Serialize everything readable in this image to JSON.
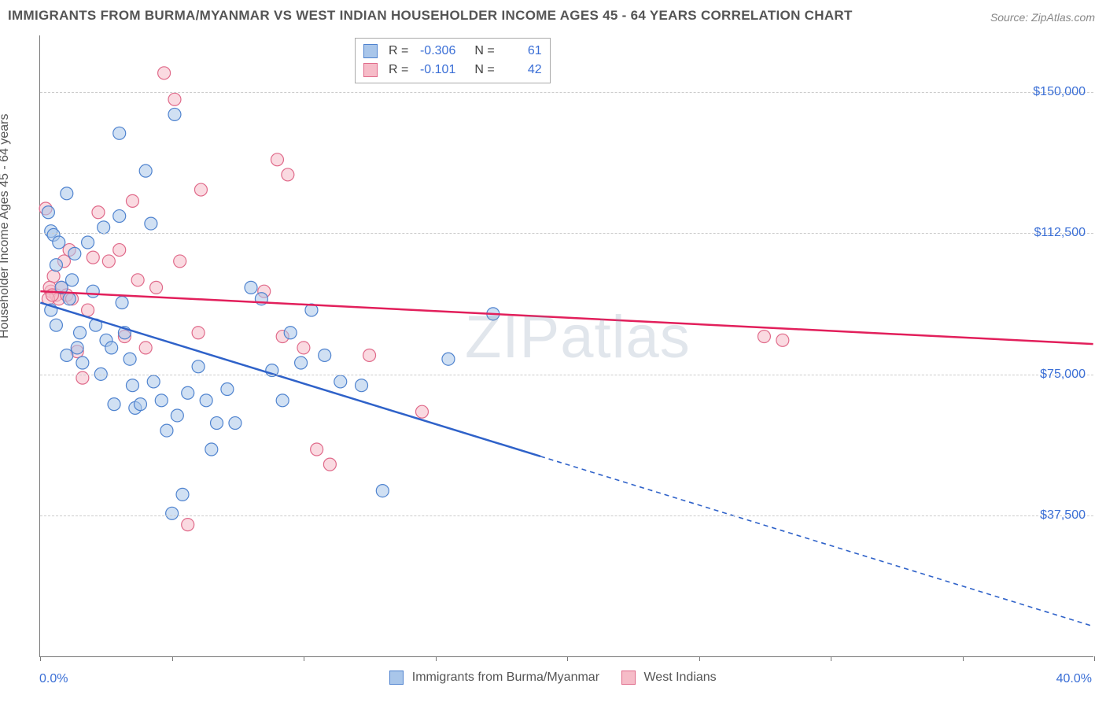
{
  "title": "IMMIGRANTS FROM BURMA/MYANMAR VS WEST INDIAN HOUSEHOLDER INCOME AGES 45 - 64 YEARS CORRELATION CHART",
  "source": "Source: ZipAtlas.com",
  "ylabel": "Householder Income Ages 45 - 64 years",
  "watermark": "ZIPatlas",
  "colors": {
    "blue_fill": "#a9c6ea",
    "blue_stroke": "#4f83cf",
    "pink_fill": "#f6bcc8",
    "pink_stroke": "#e06a8a",
    "blue_line": "#2f62c9",
    "pink_line": "#e21f5b",
    "axis_text": "#3b6fd6",
    "grid": "#cccccc"
  },
  "chart": {
    "type": "scatter",
    "xlim": [
      0,
      40
    ],
    "ylim": [
      0,
      165000
    ],
    "y_gridlines": [
      37500,
      75000,
      112500,
      150000
    ],
    "y_tick_labels": [
      "$37,500",
      "$75,000",
      "$112,500",
      "$150,000"
    ],
    "x_ticks": [
      0,
      5,
      10,
      15,
      20,
      25,
      30,
      35,
      40
    ],
    "x_left_label": "0.0%",
    "x_right_label": "40.0%",
    "marker_radius": 8,
    "marker_opacity": 0.55,
    "line_width": 2.5
  },
  "top_legend": {
    "rows": [
      {
        "swatch": "blue",
        "r_label": "R =",
        "r": "-0.306",
        "n_label": "N =",
        "n": "61"
      },
      {
        "swatch": "pink",
        "r_label": "R =",
        "r": "-0.101",
        "n_label": "N =",
        "n": "42"
      }
    ]
  },
  "bottom_legend": {
    "items": [
      {
        "swatch": "blue",
        "label": "Immigrants from Burma/Myanmar"
      },
      {
        "swatch": "pink",
        "label": "West Indians"
      }
    ]
  },
  "trend_lines": {
    "blue": {
      "x1": 0,
      "y1": 94000,
      "x2_solid": 19,
      "x2": 40,
      "y2": 8000
    },
    "pink": {
      "x1": 0,
      "y1": 97000,
      "x2": 40,
      "y2": 83000
    }
  },
  "series_blue": [
    [
      0.3,
      118000
    ],
    [
      0.4,
      113000
    ],
    [
      0.5,
      112000
    ],
    [
      0.7,
      110000
    ],
    [
      0.6,
      104000
    ],
    [
      0.8,
      98000
    ],
    [
      0.4,
      92000
    ],
    [
      0.6,
      88000
    ],
    [
      1.0,
      123000
    ],
    [
      1.2,
      100000
    ],
    [
      1.3,
      107000
    ],
    [
      1.1,
      95000
    ],
    [
      1.4,
      82000
    ],
    [
      1.0,
      80000
    ],
    [
      1.6,
      78000
    ],
    [
      1.5,
      86000
    ],
    [
      1.8,
      110000
    ],
    [
      2.0,
      97000
    ],
    [
      2.1,
      88000
    ],
    [
      2.4,
      114000
    ],
    [
      2.5,
      84000
    ],
    [
      2.7,
      82000
    ],
    [
      2.3,
      75000
    ],
    [
      2.8,
      67000
    ],
    [
      3.0,
      139000
    ],
    [
      3.0,
      117000
    ],
    [
      3.1,
      94000
    ],
    [
      3.2,
      86000
    ],
    [
      3.4,
      79000
    ],
    [
      3.5,
      72000
    ],
    [
      3.6,
      66000
    ],
    [
      3.8,
      67000
    ],
    [
      4.0,
      129000
    ],
    [
      4.2,
      115000
    ],
    [
      4.3,
      73000
    ],
    [
      4.6,
      68000
    ],
    [
      4.8,
      60000
    ],
    [
      5.0,
      38000
    ],
    [
      5.2,
      64000
    ],
    [
      5.4,
      43000
    ],
    [
      5.1,
      144000
    ],
    [
      5.6,
      70000
    ],
    [
      6.0,
      77000
    ],
    [
      6.3,
      68000
    ],
    [
      6.7,
      62000
    ],
    [
      6.5,
      55000
    ],
    [
      7.1,
      71000
    ],
    [
      7.4,
      62000
    ],
    [
      8.0,
      98000
    ],
    [
      8.4,
      95000
    ],
    [
      8.8,
      76000
    ],
    [
      9.2,
      68000
    ],
    [
      9.5,
      86000
    ],
    [
      9.9,
      78000
    ],
    [
      10.3,
      92000
    ],
    [
      10.8,
      80000
    ],
    [
      11.4,
      73000
    ],
    [
      12.2,
      72000
    ],
    [
      13.0,
      44000
    ],
    [
      15.5,
      79000
    ],
    [
      17.2,
      91000
    ]
  ],
  "series_pink": [
    [
      0.2,
      119000
    ],
    [
      0.4,
      97000
    ],
    [
      0.5,
      101000
    ],
    [
      0.6,
      96000
    ],
    [
      0.7,
      95000
    ],
    [
      0.8,
      98000
    ],
    [
      0.9,
      105000
    ],
    [
      1.0,
      96000
    ],
    [
      1.1,
      108000
    ],
    [
      1.2,
      95000
    ],
    [
      1.4,
      81000
    ],
    [
      1.6,
      74000
    ],
    [
      1.8,
      92000
    ],
    [
      2.0,
      106000
    ],
    [
      2.2,
      118000
    ],
    [
      2.6,
      105000
    ],
    [
      3.0,
      108000
    ],
    [
      3.2,
      85000
    ],
    [
      3.5,
      121000
    ],
    [
      3.7,
      100000
    ],
    [
      4.0,
      82000
    ],
    [
      4.4,
      98000
    ],
    [
      4.7,
      155000
    ],
    [
      5.1,
      148000
    ],
    [
      5.3,
      105000
    ],
    [
      5.6,
      35000
    ],
    [
      6.0,
      86000
    ],
    [
      6.1,
      124000
    ],
    [
      8.5,
      97000
    ],
    [
      9.0,
      132000
    ],
    [
      9.2,
      85000
    ],
    [
      9.4,
      128000
    ],
    [
      10.0,
      82000
    ],
    [
      10.5,
      55000
    ],
    [
      11.0,
      51000
    ],
    [
      12.5,
      80000
    ],
    [
      14.5,
      65000
    ],
    [
      27.5,
      85000
    ],
    [
      28.2,
      84000
    ],
    [
      0.3,
      95000
    ],
    [
      0.35,
      98000
    ],
    [
      0.45,
      96000
    ]
  ]
}
